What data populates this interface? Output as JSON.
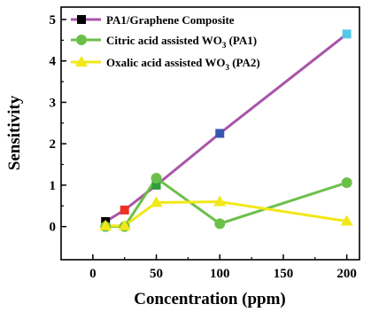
{
  "chart_data": {
    "type": "line",
    "xlabel": "Concentration (ppm)",
    "ylabel": "Sensitivity",
    "xlim": [
      -25,
      210
    ],
    "ylim": [
      -0.8,
      5.3
    ],
    "xticks": [
      "0",
      "50",
      "100",
      "150",
      "200"
    ],
    "yticks": [
      "0",
      "1",
      "2",
      "3",
      "4",
      "5"
    ],
    "legend_position": "top-left",
    "series": [
      {
        "name": "PA1/Graphene Composite",
        "line_color": "#A855A8",
        "marker": "square",
        "x": [
          10,
          25,
          50,
          100,
          200
        ],
        "y": [
          0.12,
          0.4,
          1.0,
          2.25,
          4.65
        ],
        "point_colors": [
          "#000000",
          "#EE3322",
          "#2E9E3A",
          "#3A55B0",
          "#55C8E8"
        ]
      },
      {
        "name_main": "Citric acid assisted WO",
        "name_sub": "3",
        "name_tail": " (PA1)",
        "line_color": "#6CC04A",
        "marker": "circle",
        "x": [
          10,
          25,
          50,
          100,
          200
        ],
        "y": [
          0.0,
          0.0,
          1.17,
          0.07,
          1.06
        ],
        "point_colors": [
          "#6CC04A",
          "#6CC04A",
          "#6CC04A",
          "#6CC04A",
          "#6CC04A"
        ]
      },
      {
        "name_main": "Oxalic acid assisted WO",
        "name_sub": "3",
        "name_tail": " (PA2)",
        "line_color": "#F2E818",
        "marker": "triangle",
        "x": [
          10,
          25,
          50,
          100,
          200
        ],
        "y": [
          0.02,
          0.02,
          0.58,
          0.6,
          0.13
        ],
        "point_colors": [
          "#F2E818",
          "#F2E818",
          "#F2E818",
          "#F2E818",
          "#F2E818"
        ]
      }
    ]
  }
}
